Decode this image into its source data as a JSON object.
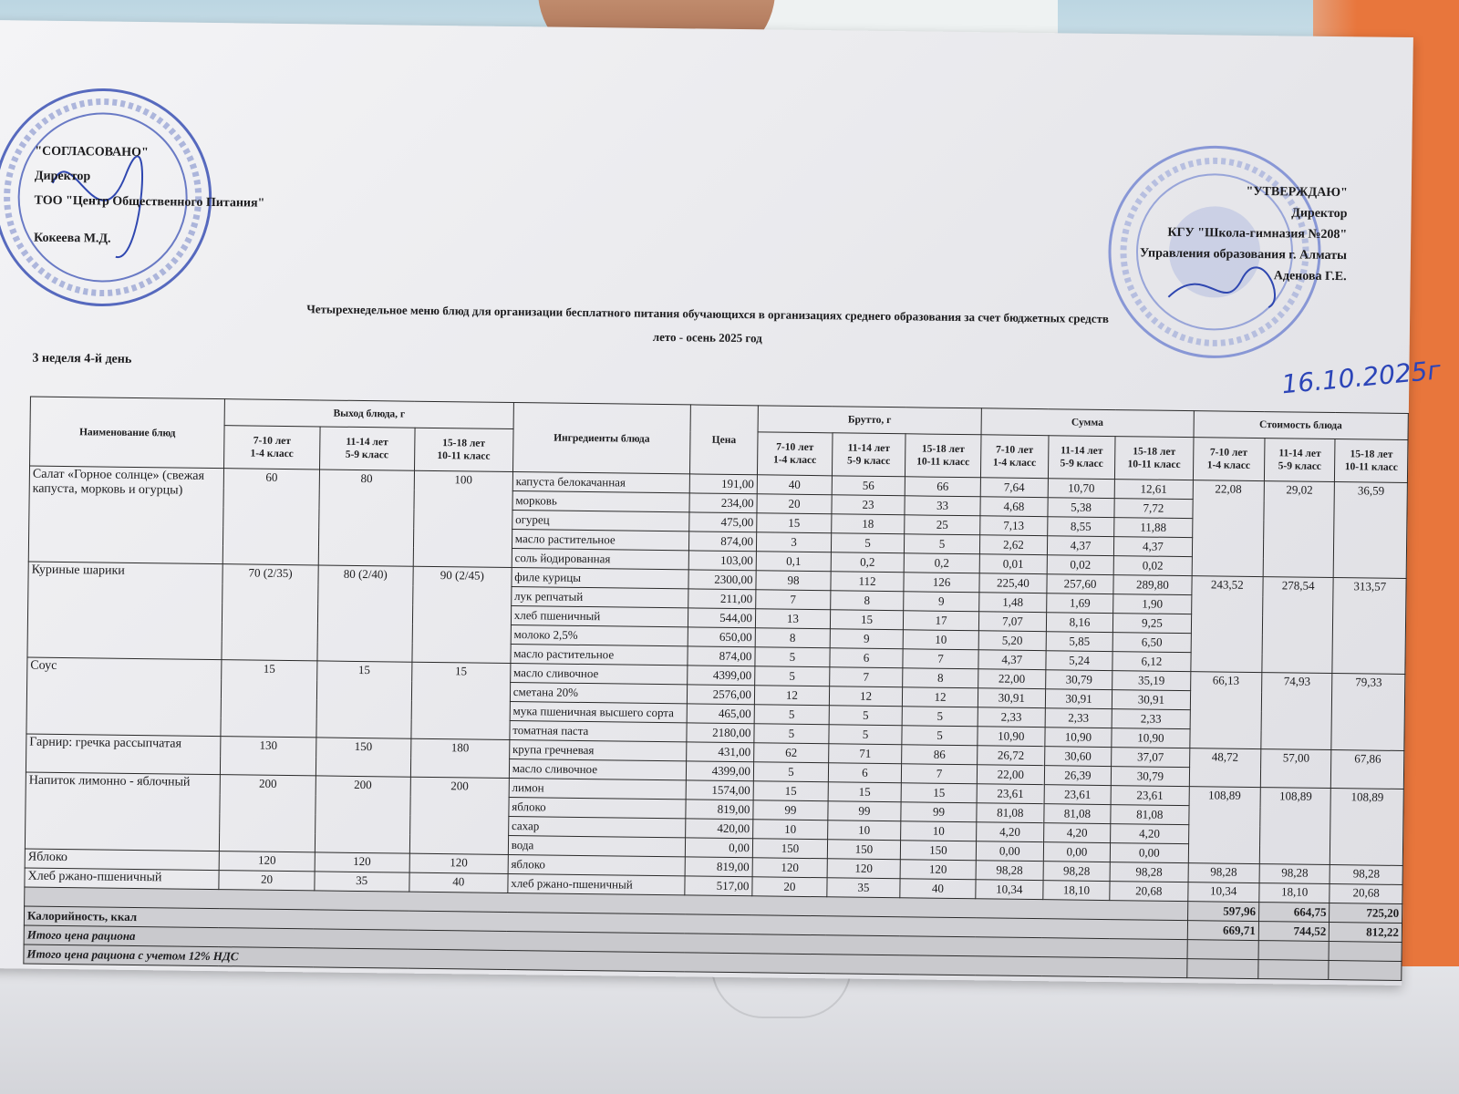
{
  "approved_left": {
    "line1": "\"СОГЛАСОВАНО\"",
    "line2": "Директор",
    "line3": "ТОО \"Центр Общественного Питания\"",
    "line4": "Кокеева М.Д."
  },
  "approved_right": {
    "line1": "\"УТВЕРЖДАЮ\"",
    "line2": "Директор",
    "line3": "КГУ  \"Школа-гимназия №208\"",
    "line4": "Управления образования г. Алматы",
    "line5": "Аденова Г.Е."
  },
  "stamps": {
    "left_text": "Алматы қаласы Жауапкершілігі шектеулі серіктестігі · Товарищество с ограниченной ответственностью · Центр Общественного Питания",
    "right_text": "КОММУНАЛДЫҚ МЕМЛЕКЕТТІК МЕКЕМЕСІ · БСН 221140010"
  },
  "title": {
    "line1": "Четырехнедельное меню блюд для организации бесплатного питания обучающихся в организациях среднего образования за счет бюджетных средств",
    "line2": "лето - осень 2025 год"
  },
  "week_day": "3 неделя 4-й день",
  "handwritten_date": "16.10.2025г",
  "colors": {
    "stamp": "#2f47b0",
    "ink": "#1c1c1e"
  },
  "table": {
    "headers": {
      "name": "Наименование блюд",
      "yield": "Выход блюда, г",
      "ingredients": "Ингредиенты блюда",
      "price": "Цена",
      "brutto": "Брутто, г",
      "sum": "Сумма",
      "cost": "Стоимость блюда",
      "groups": [
        "7-10 лет\n1-4 класс",
        "11-14 лет\n5-9 класс",
        "15-18 лет\n10-11 класс"
      ]
    },
    "dishes": [
      {
        "name": "Салат «Горное солнце» (свежая капуста, морковь и огурцы)",
        "yield": [
          "60",
          "80",
          "100"
        ],
        "cost": [
          "22,08",
          "29,02",
          "36,59"
        ],
        "ingredients": [
          {
            "name": "капуста белокачанная",
            "price": "191,00",
            "brutto": [
              "40",
              "56",
              "66"
            ],
            "sum": [
              "7,64",
              "10,70",
              "12,61"
            ]
          },
          {
            "name": "морковь",
            "price": "234,00",
            "brutto": [
              "20",
              "23",
              "33"
            ],
            "sum": [
              "4,68",
              "5,38",
              "7,72"
            ]
          },
          {
            "name": "огурец",
            "price": "475,00",
            "brutto": [
              "15",
              "18",
              "25"
            ],
            "sum": [
              "7,13",
              "8,55",
              "11,88"
            ]
          },
          {
            "name": "масло растительное",
            "price": "874,00",
            "brutto": [
              "3",
              "5",
              "5"
            ],
            "sum": [
              "2,62",
              "4,37",
              "4,37"
            ]
          },
          {
            "name": "соль йодированная",
            "price": "103,00",
            "brutto": [
              "0,1",
              "0,2",
              "0,2"
            ],
            "sum": [
              "0,01",
              "0,02",
              "0,02"
            ]
          }
        ]
      },
      {
        "name": "Куриные шарики",
        "yield": [
          "70 (2/35)",
          "80 (2/40)",
          "90 (2/45)"
        ],
        "cost": [
          "243,52",
          "278,54",
          "313,57"
        ],
        "ingredients": [
          {
            "name": "филе курицы",
            "price": "2300,00",
            "brutto": [
              "98",
              "112",
              "126"
            ],
            "sum": [
              "225,40",
              "257,60",
              "289,80"
            ]
          },
          {
            "name": "лук репчатый",
            "price": "211,00",
            "brutto": [
              "7",
              "8",
              "9"
            ],
            "sum": [
              "1,48",
              "1,69",
              "1,90"
            ]
          },
          {
            "name": "хлеб пшеничный",
            "price": "544,00",
            "brutto": [
              "13",
              "15",
              "17"
            ],
            "sum": [
              "7,07",
              "8,16",
              "9,25"
            ]
          },
          {
            "name": "молоко 2,5%",
            "price": "650,00",
            "brutto": [
              "8",
              "9",
              "10"
            ],
            "sum": [
              "5,20",
              "5,85",
              "6,50"
            ]
          },
          {
            "name": "масло растительное",
            "price": "874,00",
            "brutto": [
              "5",
              "6",
              "7"
            ],
            "sum": [
              "4,37",
              "5,24",
              "6,12"
            ]
          }
        ]
      },
      {
        "name": "Соус",
        "yield": [
          "15",
          "15",
          "15"
        ],
        "cost": [
          "66,13",
          "74,93",
          "79,33"
        ],
        "ingredients": [
          {
            "name": "масло сливочное",
            "price": "4399,00",
            "brutto": [
              "5",
              "7",
              "8"
            ],
            "sum": [
              "22,00",
              "30,79",
              "35,19"
            ]
          },
          {
            "name": "сметана 20%",
            "price": "2576,00",
            "brutto": [
              "12",
              "12",
              "12"
            ],
            "sum": [
              "30,91",
              "30,91",
              "30,91"
            ]
          },
          {
            "name": "мука пшеничная высшего сорта",
            "price": "465,00",
            "brutto": [
              "5",
              "5",
              "5"
            ],
            "sum": [
              "2,33",
              "2,33",
              "2,33"
            ]
          },
          {
            "name": "томатная паста",
            "price": "2180,00",
            "brutto": [
              "5",
              "5",
              "5"
            ],
            "sum": [
              "10,90",
              "10,90",
              "10,90"
            ]
          }
        ]
      },
      {
        "name": "Гарнир: гречка рассыпчатая",
        "yield": [
          "130",
          "150",
          "180"
        ],
        "cost": [
          "48,72",
          "57,00",
          "67,86"
        ],
        "ingredients": [
          {
            "name": "крупа гречневая",
            "price": "431,00",
            "brutto": [
              "62",
              "71",
              "86"
            ],
            "sum": [
              "26,72",
              "30,60",
              "37,07"
            ]
          },
          {
            "name": "масло сливочное",
            "price": "4399,00",
            "brutto": [
              "5",
              "6",
              "7"
            ],
            "sum": [
              "22,00",
              "26,39",
              "30,79"
            ]
          }
        ]
      },
      {
        "name": "Напиток лимонно - яблочный",
        "yield": [
          "200",
          "200",
          "200"
        ],
        "cost": [
          "108,89",
          "108,89",
          "108,89"
        ],
        "ingredients": [
          {
            "name": "лимон",
            "price": "1574,00",
            "brutto": [
              "15",
              "15",
              "15"
            ],
            "sum": [
              "23,61",
              "23,61",
              "23,61"
            ]
          },
          {
            "name": "яблоко",
            "price": "819,00",
            "brutto": [
              "99",
              "99",
              "99"
            ],
            "sum": [
              "81,08",
              "81,08",
              "81,08"
            ]
          },
          {
            "name": "сахар",
            "price": "420,00",
            "brutto": [
              "10",
              "10",
              "10"
            ],
            "sum": [
              "4,20",
              "4,20",
              "4,20"
            ]
          },
          {
            "name": "вода",
            "price": "0,00",
            "brutto": [
              "150",
              "150",
              "150"
            ],
            "sum": [
              "0,00",
              "0,00",
              "0,00"
            ]
          }
        ]
      },
      {
        "name": "Яблоко",
        "yield": [
          "120",
          "120",
          "120"
        ],
        "cost": [
          "98,28",
          "98,28",
          "98,28"
        ],
        "ingredients": [
          {
            "name": "яблоко",
            "price": "819,00",
            "brutto": [
              "120",
              "120",
              "120"
            ],
            "sum": [
              "98,28",
              "98,28",
              "98,28"
            ]
          }
        ]
      },
      {
        "name": "Хлеб ржано-пшеничный",
        "yield": [
          "20",
          "35",
          "40"
        ],
        "cost": [
          "10,34",
          "18,10",
          "20,68"
        ],
        "ingredients": [
          {
            "name": "хлеб ржано-пшеничный",
            "price": "517,00",
            "brutto": [
              "20",
              "35",
              "40"
            ],
            "sum": [
              "10,34",
              "18,10",
              "20,68"
            ]
          }
        ]
      }
    ],
    "total_row": {
      "values": [
        "597,96",
        "664,75",
        "725,20"
      ]
    },
    "calories_row": {
      "label": "Калорийность, ккал",
      "values": [
        "669,71",
        "744,52",
        "812,22"
      ]
    },
    "itogo": "Итого цена рациона",
    "itogo_vat": "Итого цена рациона с учетом 12% НДС"
  }
}
